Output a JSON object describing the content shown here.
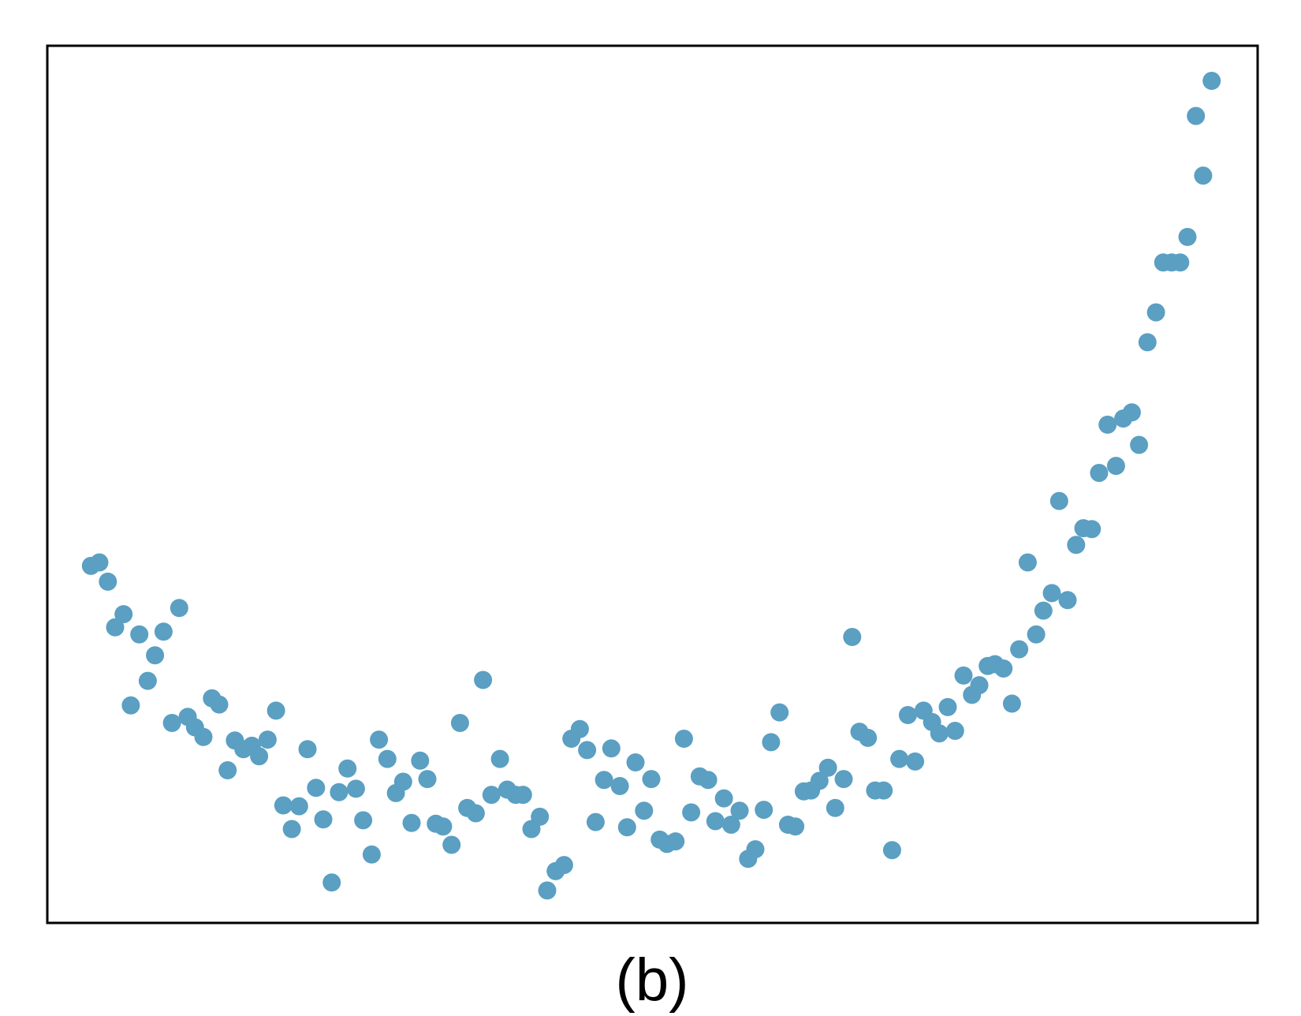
{
  "panel_label": "(b)",
  "colors": {
    "point": "#5b9fc2",
    "frame": "#000000",
    "background": "#ffffff"
  },
  "chart_data": {
    "type": "scatter",
    "title": "",
    "xlabel": "",
    "ylabel": "",
    "xlim": [
      0,
      100
    ],
    "ylim": [
      0,
      100
    ],
    "ticks": "none",
    "grid": false,
    "legend": "none",
    "points": [
      [
        3.6,
        40.7
      ],
      [
        4.3,
        41.1
      ],
      [
        5.0,
        38.9
      ],
      [
        5.6,
        33.7
      ],
      [
        6.3,
        35.2
      ],
      [
        6.9,
        24.8
      ],
      [
        7.6,
        32.9
      ],
      [
        8.3,
        27.6
      ],
      [
        8.9,
        30.5
      ],
      [
        9.6,
        33.2
      ],
      [
        10.3,
        22.8
      ],
      [
        10.9,
        35.9
      ],
      [
        11.6,
        23.5
      ],
      [
        12.2,
        22.3
      ],
      [
        12.9,
        21.2
      ],
      [
        13.6,
        25.6
      ],
      [
        14.2,
        24.9
      ],
      [
        14.9,
        17.4
      ],
      [
        15.5,
        20.8
      ],
      [
        16.2,
        19.8
      ],
      [
        16.9,
        20.2
      ],
      [
        17.5,
        19.0
      ],
      [
        18.2,
        20.9
      ],
      [
        18.9,
        24.2
      ],
      [
        19.5,
        13.4
      ],
      [
        20.2,
        10.7
      ],
      [
        20.8,
        13.3
      ],
      [
        21.5,
        19.8
      ],
      [
        22.2,
        15.4
      ],
      [
        22.8,
        11.8
      ],
      [
        23.5,
        4.6
      ],
      [
        24.1,
        14.9
      ],
      [
        24.8,
        17.6
      ],
      [
        25.5,
        15.3
      ],
      [
        26.1,
        11.7
      ],
      [
        26.8,
        7.8
      ],
      [
        27.4,
        20.9
      ],
      [
        28.1,
        18.7
      ],
      [
        28.8,
        14.8
      ],
      [
        29.4,
        16.1
      ],
      [
        30.1,
        11.4
      ],
      [
        30.8,
        18.5
      ],
      [
        31.4,
        16.4
      ],
      [
        32.1,
        11.3
      ],
      [
        32.7,
        11.0
      ],
      [
        33.4,
        8.9
      ],
      [
        34.1,
        22.8
      ],
      [
        34.7,
        13.1
      ],
      [
        35.4,
        12.5
      ],
      [
        36.0,
        27.7
      ],
      [
        36.7,
        14.6
      ],
      [
        37.4,
        18.7
      ],
      [
        38.0,
        15.2
      ],
      [
        38.7,
        14.6
      ],
      [
        39.3,
        14.6
      ],
      [
        40.0,
        10.7
      ],
      [
        40.7,
        12.1
      ],
      [
        41.3,
        3.7
      ],
      [
        42.0,
        5.9
      ],
      [
        42.7,
        6.6
      ],
      [
        43.3,
        21.0
      ],
      [
        44.0,
        22.1
      ],
      [
        44.6,
        19.7
      ],
      [
        45.3,
        11.5
      ],
      [
        46.0,
        16.3
      ],
      [
        46.6,
        19.9
      ],
      [
        47.3,
        15.6
      ],
      [
        47.9,
        10.9
      ],
      [
        48.6,
        18.3
      ],
      [
        49.3,
        12.8
      ],
      [
        49.9,
        16.4
      ],
      [
        50.6,
        9.5
      ],
      [
        51.2,
        9.0
      ],
      [
        51.9,
        9.3
      ],
      [
        52.6,
        21.0
      ],
      [
        53.2,
        12.6
      ],
      [
        53.9,
        16.7
      ],
      [
        54.6,
        16.3
      ],
      [
        55.2,
        11.6
      ],
      [
        55.9,
        14.2
      ],
      [
        56.5,
        11.2
      ],
      [
        57.2,
        12.8
      ],
      [
        57.9,
        7.3
      ],
      [
        58.5,
        8.4
      ],
      [
        59.2,
        12.9
      ],
      [
        59.8,
        20.6
      ],
      [
        60.5,
        24.0
      ],
      [
        61.2,
        11.2
      ],
      [
        61.8,
        11.0
      ],
      [
        62.5,
        15.0
      ],
      [
        63.1,
        15.1
      ],
      [
        63.8,
        16.2
      ],
      [
        64.5,
        17.7
      ],
      [
        65.1,
        13.1
      ],
      [
        65.8,
        16.4
      ],
      [
        66.5,
        32.6
      ],
      [
        67.1,
        21.8
      ],
      [
        67.8,
        21.1
      ],
      [
        68.4,
        15.1
      ],
      [
        69.1,
        15.1
      ],
      [
        69.8,
        8.3
      ],
      [
        70.4,
        18.7
      ],
      [
        71.1,
        23.7
      ],
      [
        71.7,
        18.4
      ],
      [
        72.4,
        24.2
      ],
      [
        73.1,
        22.9
      ],
      [
        73.7,
        21.6
      ],
      [
        74.4,
        24.6
      ],
      [
        75.0,
        21.9
      ],
      [
        75.7,
        28.2
      ],
      [
        76.4,
        26.0
      ],
      [
        77.0,
        27.1
      ],
      [
        77.7,
        29.3
      ],
      [
        78.3,
        29.5
      ],
      [
        79.0,
        29.0
      ],
      [
        79.7,
        25.0
      ],
      [
        80.3,
        31.2
      ],
      [
        81.0,
        41.1
      ],
      [
        81.7,
        32.9
      ],
      [
        82.3,
        35.6
      ],
      [
        83.0,
        37.6
      ],
      [
        83.6,
        48.1
      ],
      [
        84.3,
        36.8
      ],
      [
        85.0,
        43.1
      ],
      [
        85.6,
        45.0
      ],
      [
        86.3,
        44.9
      ],
      [
        86.9,
        51.3
      ],
      [
        87.6,
        56.8
      ],
      [
        88.3,
        52.1
      ],
      [
        88.9,
        57.5
      ],
      [
        89.6,
        58.2
      ],
      [
        90.2,
        54.5
      ],
      [
        90.9,
        66.2
      ],
      [
        91.6,
        69.6
      ],
      [
        92.2,
        75.3
      ],
      [
        92.9,
        75.3
      ],
      [
        93.6,
        75.3
      ],
      [
        94.2,
        78.2
      ],
      [
        94.9,
        92.0
      ],
      [
        95.5,
        85.2
      ],
      [
        96.2,
        96.0
      ]
    ]
  }
}
